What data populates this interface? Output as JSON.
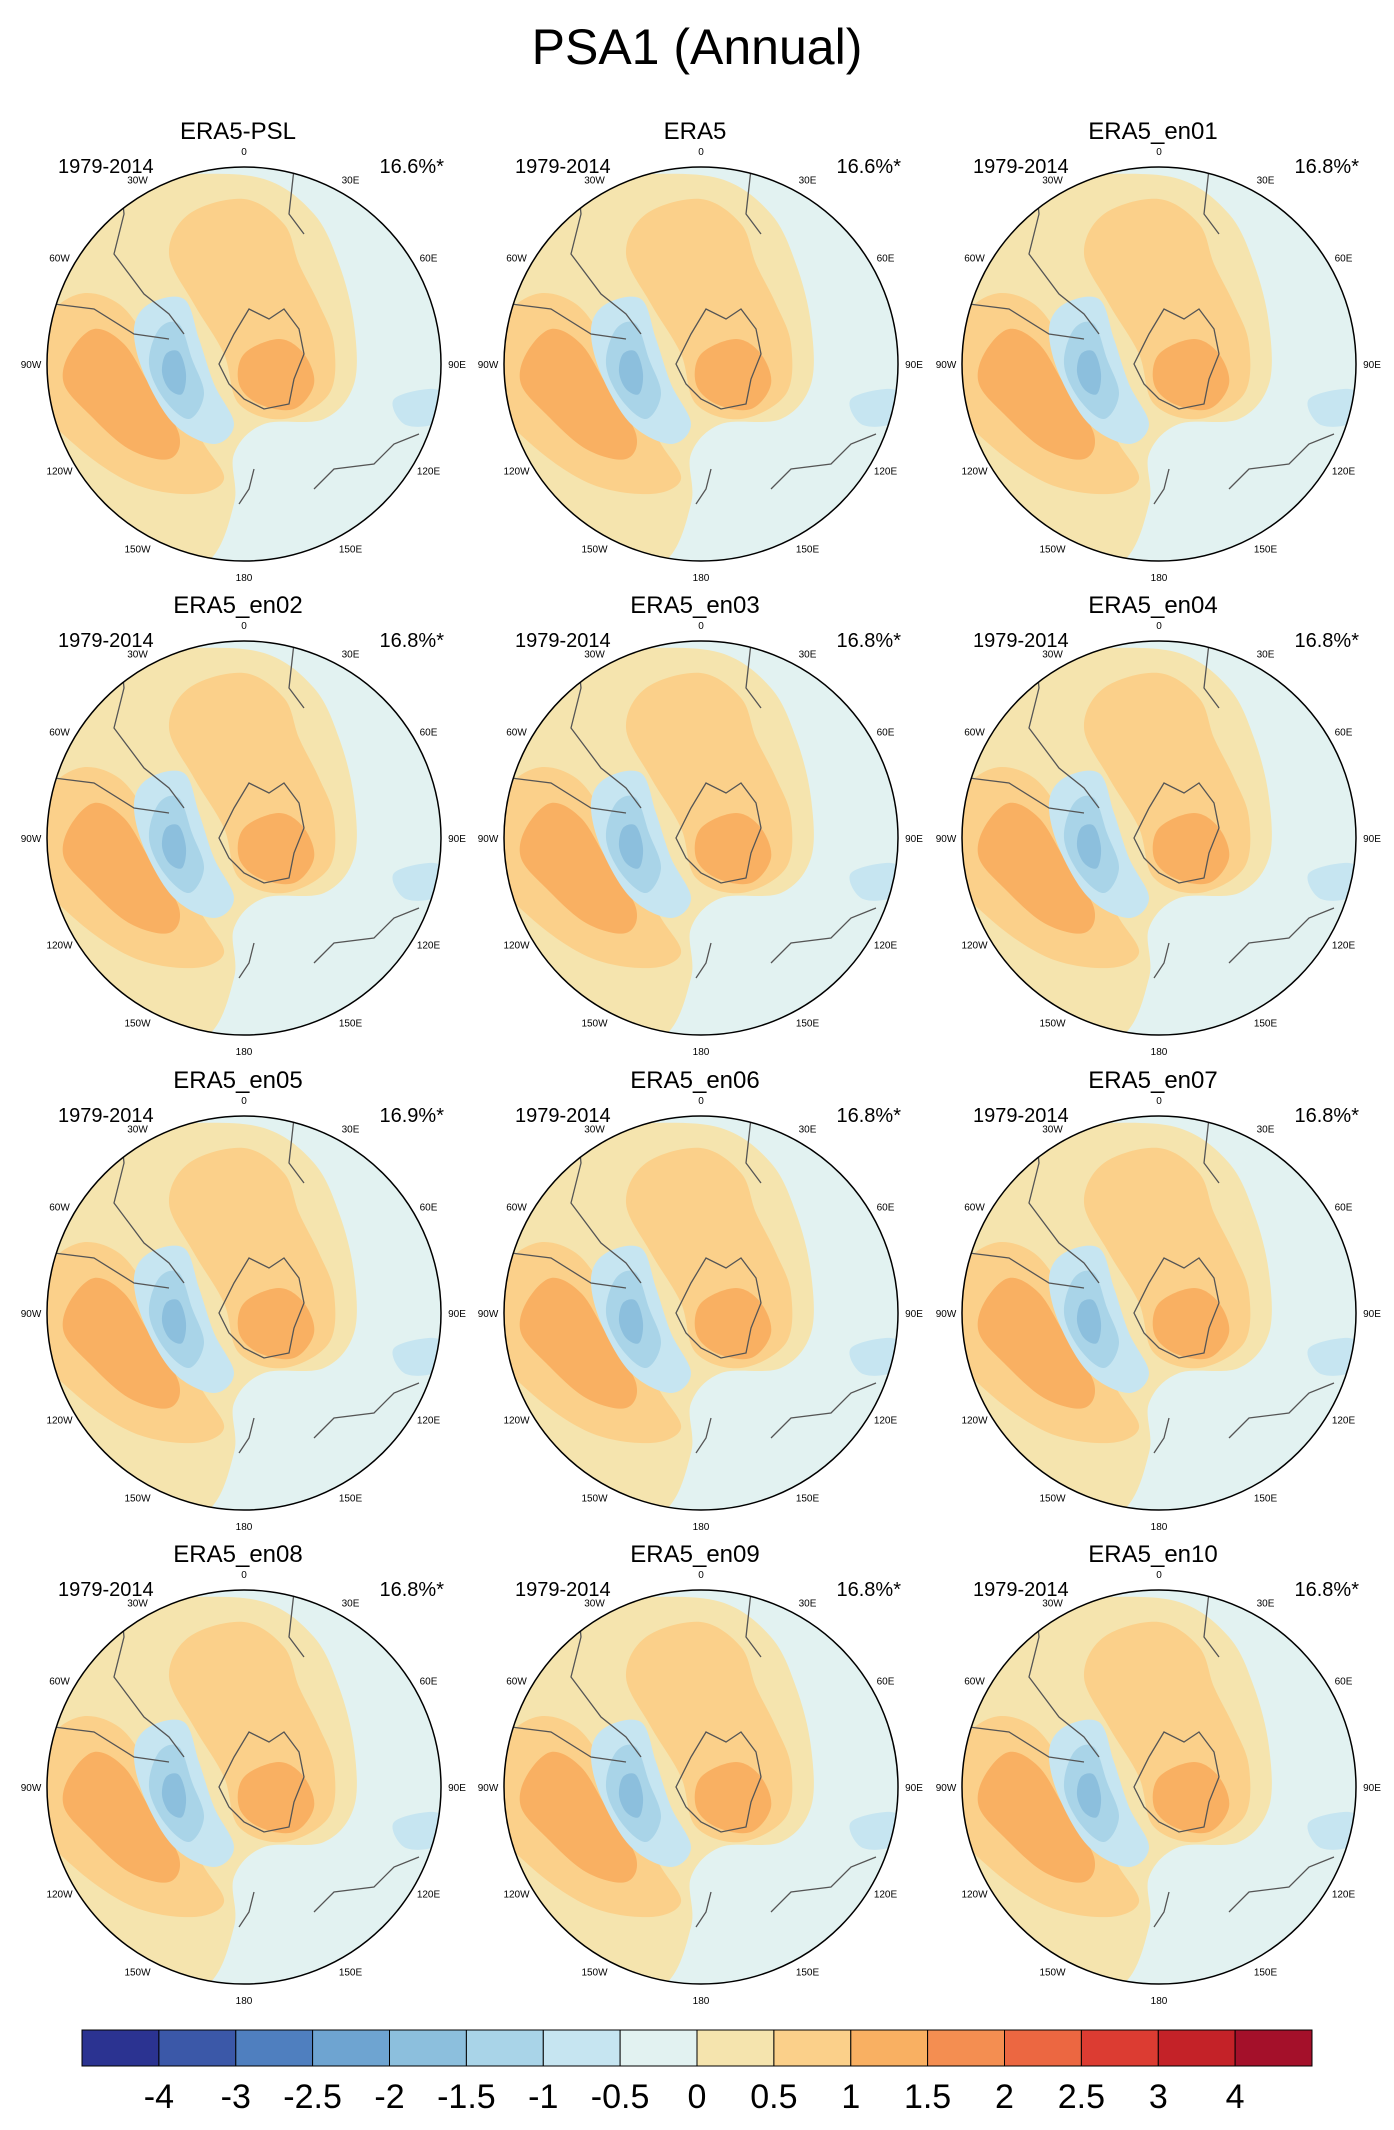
{
  "figure": {
    "title": "PSA1 (Annual)"
  },
  "chart_data": {
    "type": "contour-map",
    "projection": "south polar stereographic",
    "variable": "PSA1 sea level pressure pattern",
    "lon_labels": [
      "0",
      "30E",
      "60E",
      "90E",
      "120E",
      "150E",
      "180",
      "150W",
      "120W",
      "90W",
      "60W",
      "30W"
    ],
    "contour_levels": [
      -4,
      -3,
      -2.5,
      -2,
      -1.5,
      -1,
      -0.5,
      0,
      0.5,
      1,
      1.5,
      2,
      2.5,
      3,
      4
    ],
    "colorbar_colors": [
      "#2b3391",
      "#3b58a8",
      "#4f7fbf",
      "#6ea4d1",
      "#8cbfdd",
      "#a9d4e8",
      "#c6e5f1",
      "#e2f2f1",
      "#f5e4ae",
      "#fbd08a",
      "#f9b062",
      "#f48e51",
      "#ec6741",
      "#dc3c32",
      "#c42228",
      "#a4102a"
    ],
    "panels": [
      {
        "name": "ERA5-PSL",
        "period": "1979-2014",
        "variance": "16.6%*"
      },
      {
        "name": "ERA5",
        "period": "1979-2014",
        "variance": "16.6%*"
      },
      {
        "name": "ERA5_en01",
        "period": "1979-2014",
        "variance": "16.8%*"
      },
      {
        "name": "ERA5_en02",
        "period": "1979-2014",
        "variance": "16.8%*"
      },
      {
        "name": "ERA5_en03",
        "period": "1979-2014",
        "variance": "16.8%*"
      },
      {
        "name": "ERA5_en04",
        "period": "1979-2014",
        "variance": "16.8%*"
      },
      {
        "name": "ERA5_en05",
        "period": "1979-2014",
        "variance": "16.9%*"
      },
      {
        "name": "ERA5_en06",
        "period": "1979-2014",
        "variance": "16.8%*"
      },
      {
        "name": "ERA5_en07",
        "period": "1979-2014",
        "variance": "16.8%*"
      },
      {
        "name": "ERA5_en08",
        "period": "1979-2014",
        "variance": "16.8%*"
      },
      {
        "name": "ERA5_en09",
        "period": "1979-2014",
        "variance": "16.8%*"
      },
      {
        "name": "ERA5_en10",
        "period": "1979-2014",
        "variance": "16.8%*"
      }
    ]
  }
}
